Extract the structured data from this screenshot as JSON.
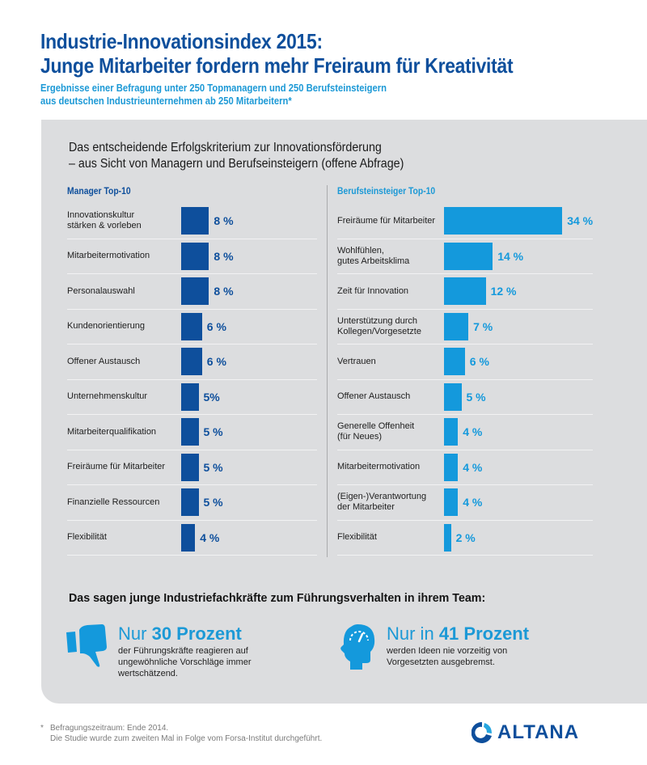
{
  "header": {
    "title_line1": "Industrie-Innovationsindex 2015:",
    "title_line2": "Junge Mitarbeiter fordern mehr Freiraum für Kreativität",
    "subtitle_line1": "Ergebnisse einer Befragung unter 250 Topmanagern und 250 Berufsteinsteigern",
    "subtitle_line2": "aus deutschen Industrieunternehmen ab 250 Mitarbeitern*"
  },
  "colors": {
    "manager": "#0e4f9c",
    "einsteiger": "#1499dc",
    "panel": "#dcdddf"
  },
  "chart_data": [
    {
      "type": "bar",
      "orientation": "horizontal",
      "title": "Das entscheidende Erfolgskriterium zur Innovationsförderung – aus Sicht von Managern und Berufseinsteigern (offene Abfrage)",
      "series_name": "Manager Top-10",
      "unit": "%",
      "categories": [
        "Innovationskultur\nstärken & vorleben",
        "Mitarbeitermotivation",
        "Personalauswahl",
        "Kundenorientierung",
        "Offener Austausch",
        "Unternehmenskultur",
        "Mitarbeiterqualifikation",
        "Freiräume für Mitarbeiter",
        "Finanzielle Ressourcen",
        "Flexibilität"
      ],
      "values": [
        8,
        8,
        8,
        6,
        6,
        5,
        5,
        5,
        5,
        4
      ],
      "labels": [
        "8 %",
        "8 %",
        "8 %",
        "6 %",
        "6 %",
        "5%",
        "5 %",
        "5 %",
        "5 %",
        "4 %"
      ],
      "xlim": [
        0,
        36
      ]
    },
    {
      "type": "bar",
      "orientation": "horizontal",
      "series_name": "Berufsteinsteiger Top-10",
      "unit": "%",
      "categories": [
        "Freiräume für Mitarbeiter",
        "Wohlfühlen,\ngutes Arbeitsklima",
        "Zeit für Innovation",
        "Unterstützung durch\nKollegen/Vorgesetzte",
        "Vertrauen",
        "Offener Austausch",
        "Generelle Offenheit\n(für Neues)",
        "Mitarbeitermotivation",
        "(Eigen-)Verantwortung\nder Mitarbeiter",
        "Flexibilität"
      ],
      "values": [
        34,
        14,
        12,
        7,
        6,
        5,
        4,
        4,
        4,
        2
      ],
      "labels": [
        "34 %",
        "14 %",
        "12 %",
        "7 %",
        "6 %",
        "5 %",
        "4 %",
        "4 %",
        "4 %",
        "2 %"
      ],
      "xlim": [
        0,
        36
      ]
    }
  ],
  "panel": {
    "title_line1": "Das entscheidende Erfolgskriterium zur Innovationsförderung",
    "title_line2": "– aus Sicht von Managern und Berufseinsteigern (offene Abfrage)",
    "left_heading": "Manager Top-10",
    "right_heading": "Berufsteinsteiger Top-10"
  },
  "quotes": {
    "title": "Das sagen junge Industriefachkräfte zum Führungsverhalten in ihrem Team:",
    "stat1": {
      "icon": "thumbs-down-icon",
      "prefix": "Nur",
      "highlight": "30 Prozent",
      "text": "der Führungskräfte reagieren auf\nungewöhnliche Vorschläge immer\nwertschätzend."
    },
    "stat2": {
      "icon": "head-gauge-icon",
      "prefix": "Nur in",
      "highlight": "41 Prozent",
      "text": "werden Ideen nie vorzeitig von\nVorgesetzten ausgebremst."
    }
  },
  "footer": {
    "star": "*",
    "note_line1": "Befragungszeitraum: Ende 2014.",
    "note_line2": "Die Studie wurde zum zweiten Mal in Folge vom Forsa-Institut durchgeführt.",
    "logo_text": "ALTANA"
  }
}
